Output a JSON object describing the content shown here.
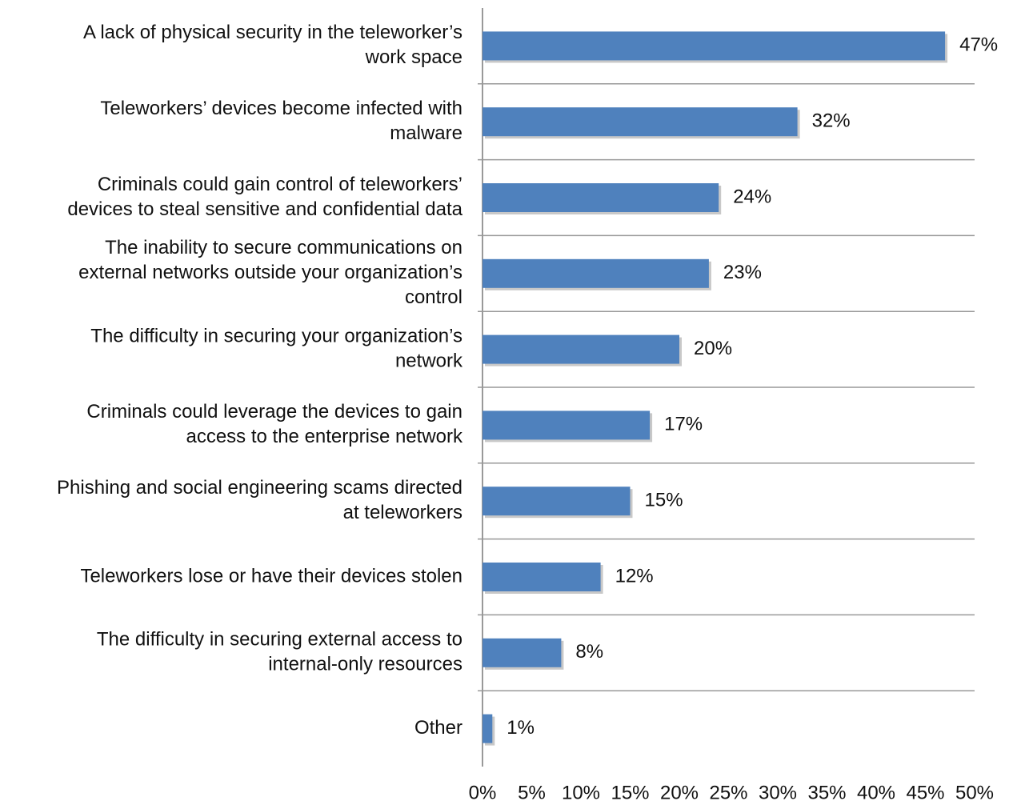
{
  "chart_data": {
    "type": "barh",
    "categories": [
      [
        "A lack of physical security in the teleworker’s",
        "work space"
      ],
      [
        "Teleworkers’ devices become infected with",
        "malware"
      ],
      [
        "Criminals could gain control of teleworkers’",
        "devices to steal sensitive and confidential data"
      ],
      [
        "The inability to secure communications on",
        "external networks outside your organization’s",
        "control"
      ],
      [
        "The difficulty in securing your organization’s",
        "network"
      ],
      [
        "Criminals could leverage the devices to gain",
        "access to the enterprise network"
      ],
      [
        "Phishing and social engineering scams directed",
        "at teleworkers"
      ],
      [
        "Teleworkers lose or have their devices stolen"
      ],
      [
        "The difficulty in securing external access to",
        "internal-only resources"
      ],
      [
        "Other"
      ]
    ],
    "values": [
      47,
      32,
      24,
      23,
      20,
      17,
      15,
      12,
      8,
      1
    ],
    "value_labels": [
      "47%",
      "32%",
      "24%",
      "23%",
      "20%",
      "17%",
      "15%",
      "12%",
      "8%",
      "1%"
    ],
    "color": "#4f81bd",
    "xlim": [
      0,
      50
    ],
    "xticks": [
      {
        "value": 0,
        "label": "0%"
      },
      {
        "value": 5,
        "label": "5%"
      },
      {
        "value": 10,
        "label": "10%"
      },
      {
        "value": 15,
        "label": "15%"
      },
      {
        "value": 20,
        "label": "20%"
      },
      {
        "value": 25,
        "label": "25%"
      },
      {
        "value": 30,
        "label": "30%"
      },
      {
        "value": 35,
        "label": "35%"
      },
      {
        "value": 40,
        "label": "40%"
      },
      {
        "value": 45,
        "label": "45%"
      },
      {
        "value": 50,
        "label": "50%"
      }
    ]
  }
}
